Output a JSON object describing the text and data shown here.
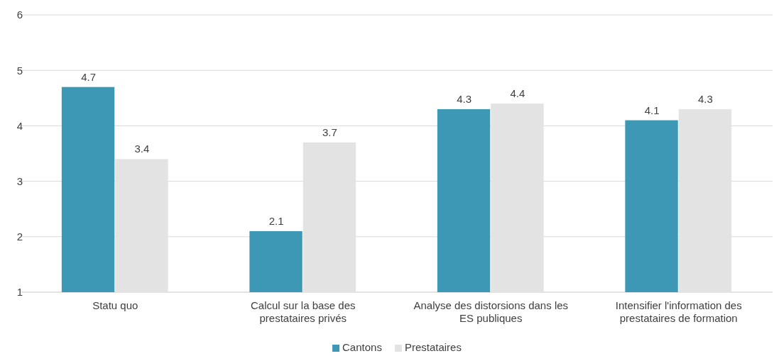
{
  "chart_data": {
    "type": "bar",
    "categories": [
      "Statu quo",
      "Calcul sur la base des prestataires privés",
      "Analyse des distorsions dans les ES publiques",
      "Intensifier l'information des prestataires de formation"
    ],
    "series": [
      {
        "name": "Cantons",
        "color": "#3d98b5",
        "values": [
          4.7,
          2.1,
          4.3,
          4.1
        ]
      },
      {
        "name": "Prestataires",
        "color": "#e3e3e3",
        "values": [
          3.4,
          3.7,
          4.4,
          4.3
        ]
      }
    ],
    "ylim": [
      1,
      6
    ],
    "yticks": [
      1,
      2,
      3,
      4,
      5,
      6
    ],
    "grid": "y",
    "legend": "bottom",
    "data_labels": true
  }
}
